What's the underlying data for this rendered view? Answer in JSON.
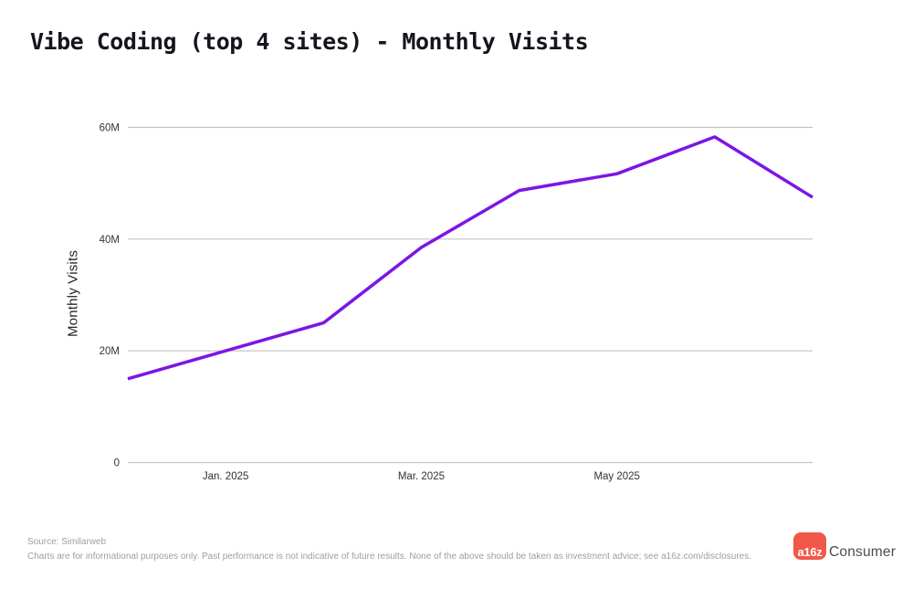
{
  "header": {
    "title": "Vibe Coding (top 4 sites) - Monthly Visits"
  },
  "chart_data": {
    "type": "line",
    "title": "Vibe Coding (top 4 sites) - Monthly Visits",
    "xlabel": "",
    "ylabel": "Monthly Visits",
    "unit": "M",
    "x": [
      "Dec 2024",
      "Jan 2025",
      "Feb 2025",
      "Mar 2025",
      "Apr 2025",
      "May 2025",
      "Jun 2025",
      "Jul 2025"
    ],
    "values": [
      15,
      20,
      25,
      38.5,
      48.7,
      51.7,
      58.3,
      47.5
    ],
    "ylim": [
      0,
      60
    ],
    "grid": "horizontal",
    "legend": "none",
    "yticks": [
      {
        "value": 0,
        "label": "0"
      },
      {
        "value": 20,
        "label": "20M"
      },
      {
        "value": 40,
        "label": "40M"
      },
      {
        "value": 60,
        "label": "60M"
      }
    ],
    "xticks": [
      {
        "index": 1,
        "label": "Jan. 2025"
      },
      {
        "index": 3,
        "label": "Mar. 2025"
      },
      {
        "index": 5,
        "label": "May 2025"
      }
    ],
    "line_color": "#7b16e6",
    "grid_color": "#c3c3c3"
  },
  "footer": {
    "source": "Source: Similarweb",
    "disclaimer": "Charts are for informational purposes only. Past performance is not indicative of future results. None of the above should be taken as investment advice; see a16z.com/disclosures."
  },
  "logo": {
    "badge": "a16z",
    "badge_color": "#f0584a",
    "wordmark": "Consumer"
  }
}
